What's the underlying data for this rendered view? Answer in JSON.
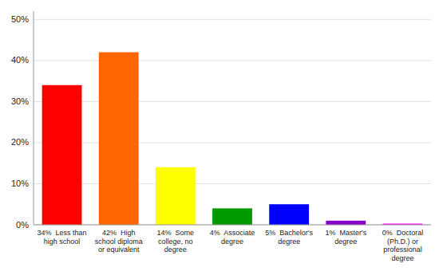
{
  "chart_data": {
    "type": "bar",
    "categories": [
      "34%  Less than\nhigh school",
      "42%  High\nschool diploma\nor equivalent",
      "14%  Some\ncollege, no\ndegree",
      "4%  Associate\ndegree",
      "5%  Bachelor's\ndegree",
      "1%  Master's\ndegree",
      "0%  Doctoral\n(Ph.D.) or\nprofessional\ndegree"
    ],
    "values": [
      34,
      42,
      14,
      4,
      5,
      1,
      0.3
    ],
    "colors": [
      "#ff0000",
      "#ff6600",
      "#ffff00",
      "#009900",
      "#0000ff",
      "#8800cc",
      "#ff00ff"
    ],
    "ylim": [
      0,
      52
    ],
    "yticks": [
      {
        "value": 0,
        "label": "0%"
      },
      {
        "value": 10,
        "label": "10%"
      },
      {
        "value": 20,
        "label": "20%"
      },
      {
        "value": 30,
        "label": "30%"
      },
      {
        "value": 40,
        "label": "40%"
      },
      {
        "value": 50,
        "label": "50%"
      }
    ],
    "grid": true
  }
}
